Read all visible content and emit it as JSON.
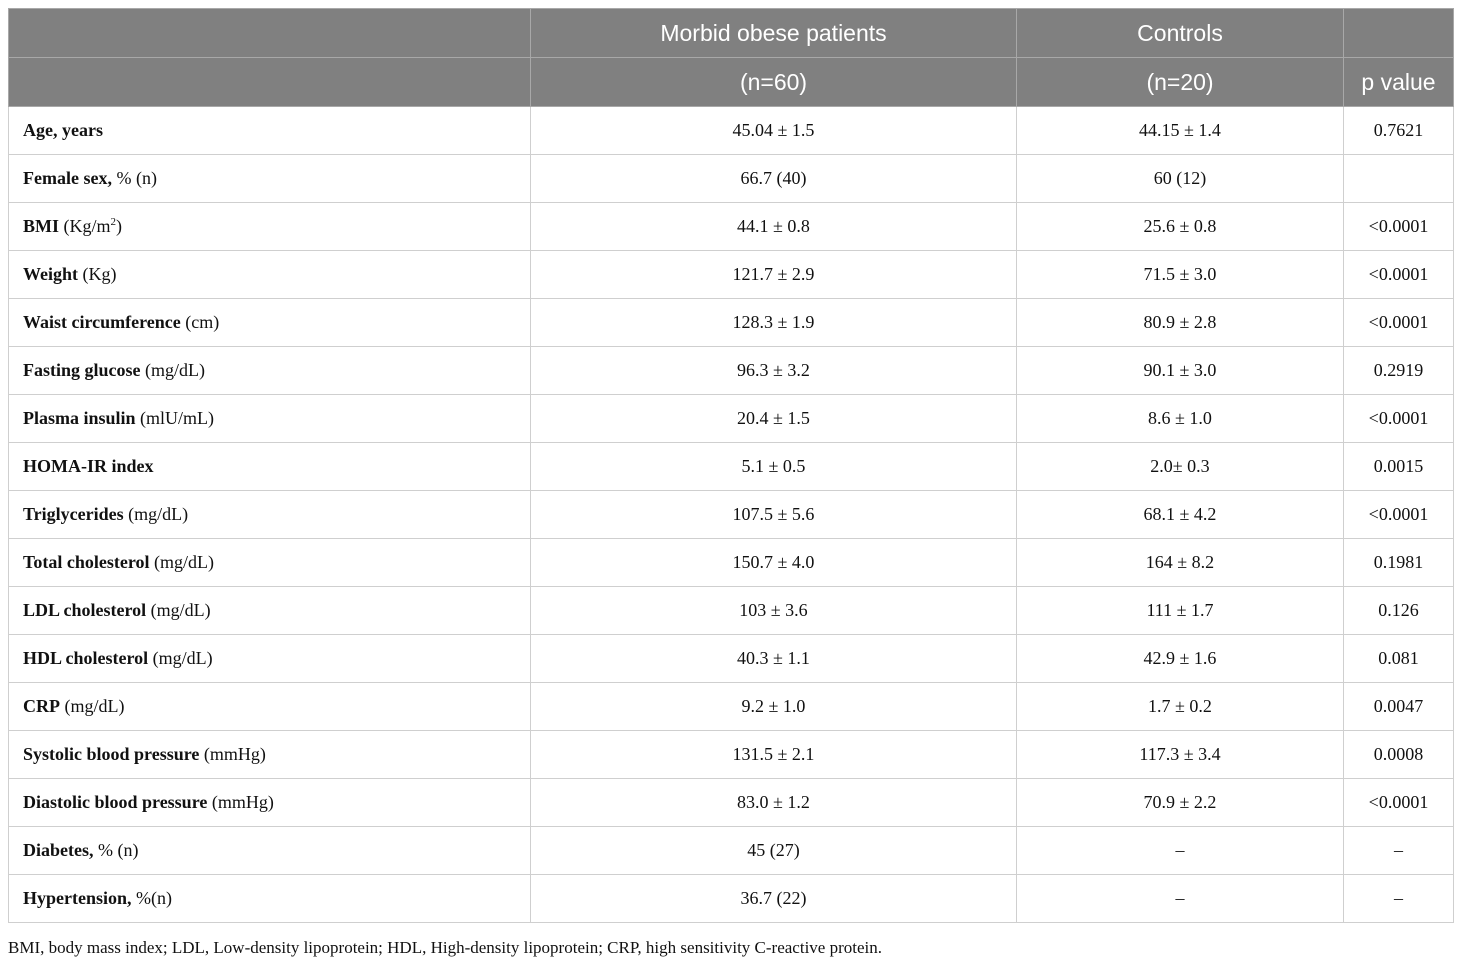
{
  "header": {
    "row1": [
      "",
      "Morbid obese patients",
      "Controls",
      ""
    ],
    "row2": [
      "",
      "(n=60)",
      "(n=20)",
      "p value"
    ]
  },
  "rows": [
    {
      "name": "Age, years",
      "unit": "",
      "obese": "45.04 ± 1.5",
      "controls": "44.15 ± 1.4",
      "p": "0.7621"
    },
    {
      "name": "Female sex,",
      "unit": "% (n)",
      "obese": "66.7 (40)",
      "controls": "60 (12)",
      "p": ""
    },
    {
      "name": "BMI",
      "unit": "(Kg/m",
      "unit_sup": "2",
      "unit_tail": ")",
      "obese": "44.1 ± 0.8",
      "controls": "25.6 ± 0.8",
      "p": "<0.0001"
    },
    {
      "name": "Weight",
      "unit": "(Kg)",
      "obese": "121.7 ± 2.9",
      "controls": "71.5 ± 3.0",
      "p": "<0.0001"
    },
    {
      "name": "Waist circumference",
      "unit": "(cm)",
      "obese": "128.3 ± 1.9",
      "controls": "80.9 ± 2.8",
      "p": "<0.0001"
    },
    {
      "name": "Fasting glucose",
      "unit": "(mg/dL)",
      "obese": "96.3 ± 3.2",
      "controls": "90.1 ± 3.0",
      "p": "0.2919"
    },
    {
      "name": "Plasma insulin",
      "unit": "(mlU/mL)",
      "obese": "20.4 ± 1.5",
      "controls": "8.6 ± 1.0",
      "p": "<0.0001"
    },
    {
      "name": "HOMA-IR index",
      "unit": "",
      "obese": "5.1 ± 0.5",
      "controls": "2.0± 0.3",
      "p": "0.0015"
    },
    {
      "name": "Triglycerides",
      "unit": "(mg/dL)",
      "obese": "107.5 ± 5.6",
      "controls": "68.1 ± 4.2",
      "p": "<0.0001"
    },
    {
      "name": "Total cholesterol",
      "unit": "(mg/dL)",
      "obese": "150.7 ± 4.0",
      "controls": "164 ± 8.2",
      "p": "0.1981"
    },
    {
      "name": "LDL cholesterol",
      "unit": "(mg/dL)",
      "obese": "103 ± 3.6",
      "controls": "111 ± 1.7",
      "p": "0.126"
    },
    {
      "name": "HDL cholesterol",
      "unit": "(mg/dL)",
      "obese": "40.3 ± 1.1",
      "controls": "42.9 ± 1.6",
      "p": "0.081"
    },
    {
      "name": "CRP",
      "unit": "(mg/dL)",
      "obese": "9.2 ± 1.0",
      "controls": "1.7 ± 0.2",
      "p": "0.0047"
    },
    {
      "name": "Systolic blood pressure",
      "unit": "(mmHg)",
      "obese": "131.5 ± 2.1",
      "controls": "117.3 ± 3.4",
      "p": "0.0008"
    },
    {
      "name": "Diastolic blood pressure",
      "unit": "(mmHg)",
      "obese": "83.0 ± 1.2",
      "controls": "70.9 ± 2.2",
      "p": "<0.0001"
    },
    {
      "name": "Diabetes,",
      "unit": "% (n)",
      "obese": "45 (27)",
      "controls": "–",
      "p": "–"
    },
    {
      "name": "Hypertension,",
      "unit": "%(n)",
      "obese": "36.7 (22)",
      "controls": "–",
      "p": "–"
    }
  ],
  "footnote": "BMI, body mass index; LDL, Low-density lipoprotein; HDL, High-density lipoprotein; CRP, high sensitivity C-reactive protein."
}
